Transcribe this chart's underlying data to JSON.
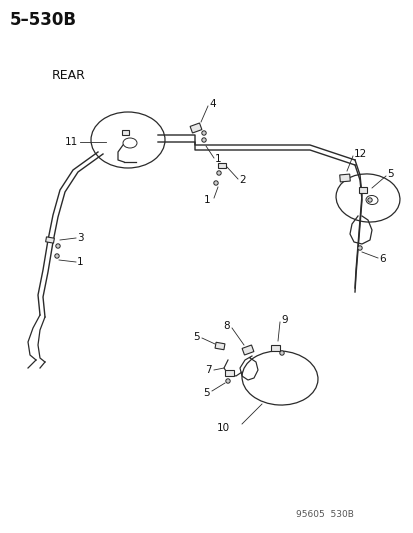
{
  "title": "5–530B",
  "rear_label": "REAR",
  "watermark": "95605  530B",
  "bg_color": "#ffffff",
  "line_color": "#2a2a2a",
  "text_color": "#111111",
  "title_fontsize": 12,
  "label_fontsize": 7.5,
  "figsize": [
    4.14,
    5.33
  ],
  "dpi": 100
}
